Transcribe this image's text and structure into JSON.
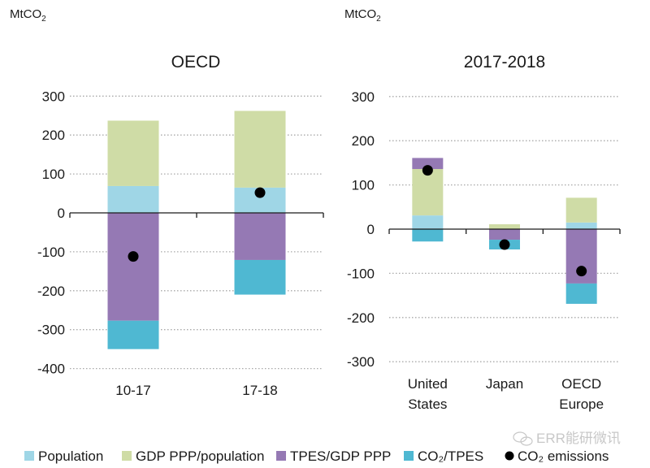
{
  "chart_data": [
    {
      "type": "bar",
      "stacked": true,
      "title": "OECD",
      "ylabel": "MtCO2",
      "xlabel": "",
      "ylim": [
        -400,
        300
      ],
      "yticks": [
        300,
        200,
        100,
        0,
        -100,
        -200,
        -300,
        -400
      ],
      "grid": true,
      "categories": [
        "10-17",
        "17-18"
      ],
      "series": [
        {
          "name": "Population",
          "key": "population",
          "values": [
            69,
            65
          ]
        },
        {
          "name": "GDP PPP/population",
          "key": "gdp",
          "values": [
            168,
            197
          ]
        },
        {
          "name": "TPES/GDP PPP",
          "key": "tpes",
          "values": [
            -277,
            -121
          ]
        },
        {
          "name": "CO2/TPES",
          "key": "co2tpes",
          "values": [
            -73,
            -89
          ]
        }
      ],
      "points": {
        "name": "CO2 emissions",
        "values": [
          -112,
          52
        ]
      }
    },
    {
      "type": "bar",
      "stacked": true,
      "title": "2017-2018",
      "ylabel": "MtCO2",
      "xlabel": "",
      "ylim": [
        -300,
        300
      ],
      "yticks": [
        300,
        200,
        100,
        0,
        -100,
        -200,
        -300
      ],
      "grid": true,
      "categories": [
        [
          "United",
          "States"
        ],
        [
          "Japan"
        ],
        [
          "OECD",
          "Europe"
        ]
      ],
      "series": [
        {
          "name": "Population",
          "key": "population",
          "values": [
            31,
            0,
            15
          ]
        },
        {
          "name": "GDP PPP/population",
          "key": "gdp",
          "values": [
            105,
            11,
            56
          ]
        },
        {
          "name": "TPES/GDP PPP",
          "key": "tpes",
          "values": [
            25,
            -24,
            -123
          ]
        },
        {
          "name": "CO2/TPES",
          "key": "co2tpes",
          "values": [
            -28,
            -22,
            -46
          ]
        }
      ],
      "points": {
        "name": "CO2 emissions",
        "values": [
          133,
          -35,
          -95
        ]
      }
    }
  ],
  "colors": {
    "population": "#9fd6e6",
    "gdp": "#cfdca6",
    "tpes": "#9579b4",
    "co2tpes": "#4fb8d2",
    "emissions": "#000000"
  },
  "units_label": {
    "main": "MtCO",
    "sub": "2"
  },
  "legend": [
    {
      "label": "Population",
      "key": "population",
      "marker": "square"
    },
    {
      "label": "GDP PPP/population",
      "key": "gdp",
      "marker": "square"
    },
    {
      "label": "TPES/GDP PPP",
      "key": "tpes",
      "marker": "square"
    },
    {
      "label": "CO₂/TPES",
      "key": "co2tpes",
      "marker": "square"
    },
    {
      "label": "CO₂ emissions",
      "key": "emissions",
      "marker": "circle"
    }
  ],
  "watermark": "ERR能研微讯"
}
